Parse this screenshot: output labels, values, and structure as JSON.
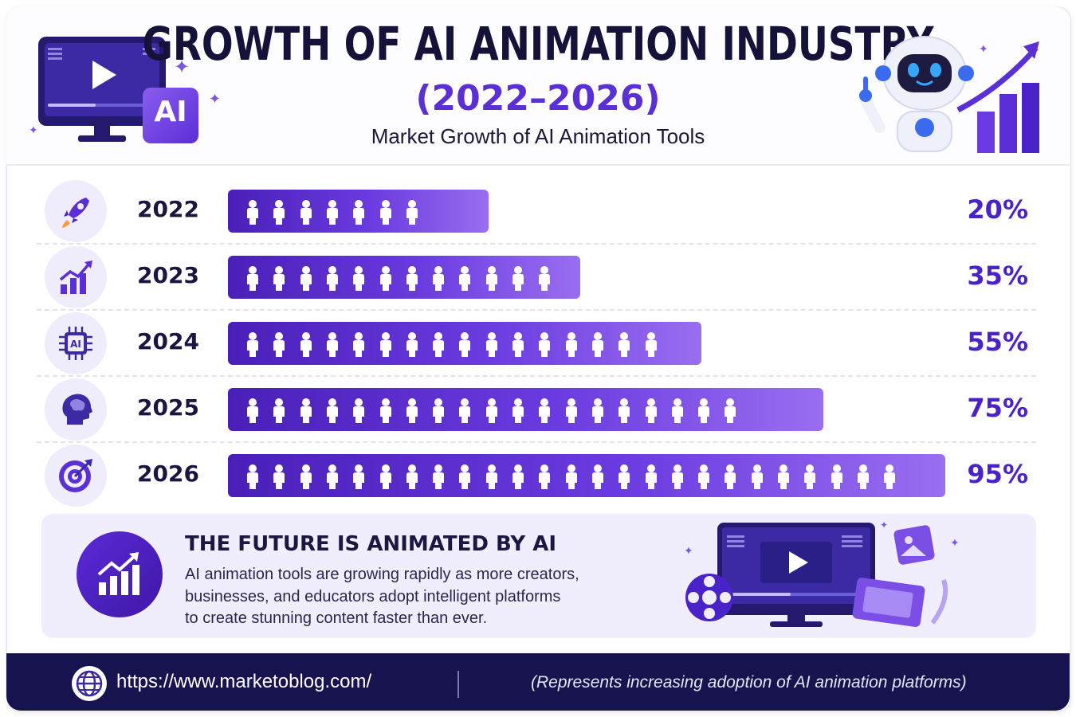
{
  "header": {
    "title": "GROWTH OF AI ANIMATION INDUSTRY",
    "year_range": "(2022–2026)",
    "tagline": "Market Growth of AI Animation Tools",
    "ai_badge_text": "AI"
  },
  "rows": [
    {
      "year": "2022",
      "percent_label": "20%",
      "icon": "rocket-icon"
    },
    {
      "year": "2023",
      "percent_label": "35%",
      "icon": "growth-chart-icon"
    },
    {
      "year": "2024",
      "percent_label": "55%",
      "icon": "ai-chip-icon"
    },
    {
      "year": "2025",
      "percent_label": "75%",
      "icon": "brain-head-icon"
    },
    {
      "year": "2026",
      "percent_label": "95%",
      "icon": "target-icon"
    }
  ],
  "chart_data": {
    "type": "bar",
    "orientation": "horizontal",
    "categories": [
      "2022",
      "2023",
      "2024",
      "2025",
      "2026"
    ],
    "values": [
      20,
      35,
      55,
      75,
      95
    ],
    "unit": "%",
    "people_counts": [
      7,
      12,
      16,
      19,
      25
    ],
    "bar_color": "#5b2fd6",
    "grid": false
  },
  "future": {
    "title": "THE FUTURE IS ANIMATED BY AI",
    "body_lines": [
      "AI animation tools are growing rapidly as more creators,",
      "businesses, and educators adopt intelligent platforms",
      "to create stunning content faster than ever."
    ]
  },
  "footer": {
    "url": "https://www.marketoblog.com/",
    "note": "(Represents increasing adoption of AI animation platforms)"
  },
  "colors": {
    "accent": "#5b2fd6",
    "dark_navy": "#16134f",
    "light_panel": "#f0eefc"
  }
}
